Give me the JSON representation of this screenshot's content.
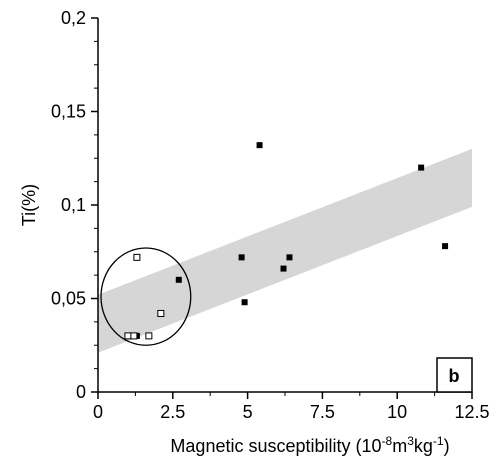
{
  "chart_data": {
    "type": "scatter",
    "ylabel": "Ti(%)",
    "xlabel_prefix": "Magnetic susceptibility (10",
    "xlabel_exp1": "-8",
    "xlabel_mid": "m",
    "xlabel_exp2": "3",
    "xlabel_mid2": "kg",
    "xlabel_exp3": "-1",
    "xlabel_suffix": ")",
    "xlim": [
      0,
      12.5
    ],
    "ylim": [
      0,
      0.2
    ],
    "x_ticks": [
      "0",
      "2.5",
      "5",
      "7.5",
      "10",
      "12.5"
    ],
    "x_tick_values": [
      0,
      2.5,
      5,
      7.5,
      10,
      12.5
    ],
    "y_ticks": [
      "0",
      "0,05",
      "0,1",
      "0,15",
      "0,2"
    ],
    "y_tick_values": [
      0,
      0.05,
      0.1,
      0.15,
      0.2
    ],
    "panel_label": "b",
    "grid": false,
    "band": {
      "color": "#d6d6d6",
      "upper": [
        [
          0,
          0.052
        ],
        [
          12.5,
          0.13
        ]
      ],
      "lower": [
        [
          0,
          0.021
        ],
        [
          12.5,
          0.099
        ]
      ]
    },
    "series": [
      {
        "marker": "filled-square",
        "color": "#000000",
        "x": [
          1.3,
          2.7,
          4.8,
          4.9,
          5.4,
          6.2,
          6.4,
          10.8,
          11.6
        ],
        "y": [
          0.03,
          0.06,
          0.072,
          0.048,
          0.132,
          0.066,
          0.072,
          0.12,
          0.078
        ]
      },
      {
        "marker": "open-square",
        "color": "#000000",
        "x": [
          1.3,
          1.0,
          1.2,
          1.7,
          2.1
        ],
        "y": [
          0.072,
          0.03,
          0.03,
          0.03,
          0.042
        ]
      }
    ],
    "ellipse": {
      "cx": 1.6,
      "cy": 0.051,
      "rx": 1.5,
      "ry": 0.026
    }
  }
}
